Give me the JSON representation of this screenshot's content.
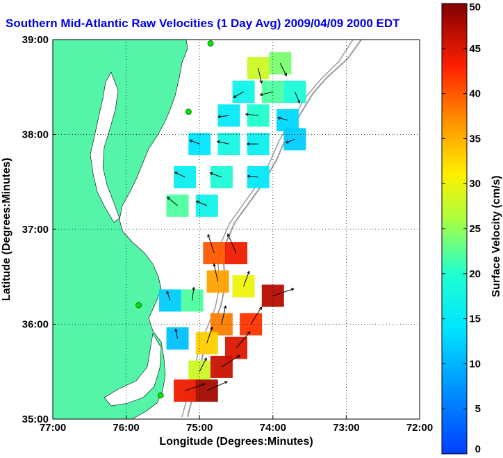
{
  "chart_data": {
    "type": "heatmap",
    "title": "Southern Mid-Atlantic Raw Velocities (1 Day Avg) 2009/04/09 2000 EDT",
    "xlabel": "Longitude (Degrees:Minutes)",
    "ylabel": "Latitude (Degrees:Minutes)",
    "xlim": [
      -77,
      -72
    ],
    "ylim": [
      35,
      39
    ],
    "x_ticks": [
      {
        "value": -77,
        "label": "77:00"
      },
      {
        "value": -76,
        "label": "76:00"
      },
      {
        "value": -75,
        "label": "75:00"
      },
      {
        "value": -74,
        "label": "74:00"
      },
      {
        "value": -73,
        "label": "73:00"
      },
      {
        "value": -72,
        "label": "72:00"
      }
    ],
    "y_ticks": [
      {
        "value": 35,
        "label": "35:00"
      },
      {
        "value": 36,
        "label": "36:00"
      },
      {
        "value": 37,
        "label": "37:00"
      },
      {
        "value": 38,
        "label": "38:00"
      },
      {
        "value": 39,
        "label": "39:00"
      }
    ],
    "grid": true,
    "colorbar": {
      "label": "Surface Velocity (cm/s)",
      "range": [
        0,
        50
      ],
      "ticks": [
        0,
        5,
        10,
        15,
        20,
        25,
        30,
        35,
        40,
        45,
        50
      ],
      "colormap": "jet"
    },
    "colors": {
      "land": "#54f5a8",
      "water": "#ffffff",
      "title": "#0000e6",
      "bathymetry": "#9a9a9a",
      "station": "#00e600"
    },
    "stations": [
      {
        "lon": -74.85,
        "lat": 38.96
      },
      {
        "lon": -75.15,
        "lat": 38.24
      },
      {
        "lon": -75.83,
        "lat": 36.2
      },
      {
        "lon": -75.53,
        "lat": 35.25
      }
    ],
    "regions": [
      {
        "name": "",
        "points": [
          {
            "lon": -74.2,
            "lat": 38.7,
            "speed": 28,
            "u": 0.2,
            "v": -0.9
          },
          {
            "lon": -73.9,
            "lat": 38.75,
            "speed": 24,
            "u": 0.4,
            "v": -0.8
          },
          {
            "lon": -74.4,
            "lat": 38.45,
            "speed": 17,
            "u": -0.7,
            "v": -0.4
          },
          {
            "lon": -74.0,
            "lat": 38.45,
            "speed": 22,
            "u": -0.8,
            "v": -0.2
          },
          {
            "lon": -73.7,
            "lat": 38.45,
            "speed": 19,
            "u": 0.3,
            "v": -0.7
          },
          {
            "lon": -74.6,
            "lat": 38.2,
            "speed": 15,
            "u": -0.8,
            "v": -0.1
          },
          {
            "lon": -74.2,
            "lat": 38.2,
            "speed": 20,
            "u": -0.9,
            "v": 0.1
          },
          {
            "lon": -73.8,
            "lat": 38.15,
            "speed": 13,
            "u": -0.7,
            "v": 0.2
          },
          {
            "lon": -75.0,
            "lat": 37.9,
            "speed": 14,
            "u": -0.8,
            "v": 0.3
          },
          {
            "lon": -74.6,
            "lat": 37.9,
            "speed": 18,
            "u": -0.9,
            "v": 0.2
          },
          {
            "lon": -74.2,
            "lat": 37.9,
            "speed": 16,
            "u": -0.8,
            "v": 0.0
          },
          {
            "lon": -73.7,
            "lat": 37.95,
            "speed": 12,
            "u": -0.5,
            "v": -0.2
          },
          {
            "lon": -75.2,
            "lat": 37.55,
            "speed": 16,
            "u": -0.8,
            "v": 0.4
          },
          {
            "lon": -74.7,
            "lat": 37.55,
            "speed": 19,
            "u": -0.8,
            "v": 0.3
          },
          {
            "lon": -74.2,
            "lat": 37.55,
            "speed": 15,
            "u": -0.9,
            "v": 0.1
          },
          {
            "lon": -75.3,
            "lat": 37.25,
            "speed": 22,
            "u": -0.6,
            "v": 0.5
          },
          {
            "lon": -74.9,
            "lat": 37.25,
            "speed": 17,
            "u": -0.7,
            "v": 0.3
          }
        ]
      },
      {
        "name": "",
        "points": [
          {
            "lon": -74.8,
            "lat": 36.75,
            "speed": 40,
            "u": -0.3,
            "v": 0.9
          },
          {
            "lon": -74.5,
            "lat": 36.75,
            "speed": 44,
            "u": -0.4,
            "v": 0.9
          },
          {
            "lon": -74.75,
            "lat": 36.45,
            "speed": 36,
            "u": -0.2,
            "v": 0.9
          },
          {
            "lon": -74.4,
            "lat": 36.4,
            "speed": 30,
            "u": 0.3,
            "v": 0.8
          },
          {
            "lon": -74.0,
            "lat": 36.3,
            "speed": 47,
            "u": 0.9,
            "v": 0.3
          },
          {
            "lon": -75.4,
            "lat": 36.25,
            "speed": 12,
            "u": -0.2,
            "v": 0.6
          },
          {
            "lon": -75.1,
            "lat": 36.25,
            "speed": 22,
            "u": 0.1,
            "v": 0.8
          },
          {
            "lon": -74.7,
            "lat": 36.0,
            "speed": 38,
            "u": 0.2,
            "v": 0.9
          },
          {
            "lon": -74.3,
            "lat": 36.0,
            "speed": 42,
            "u": 0.5,
            "v": 0.8
          },
          {
            "lon": -75.3,
            "lat": 35.85,
            "speed": 11,
            "u": -0.1,
            "v": 0.5
          },
          {
            "lon": -74.9,
            "lat": 35.8,
            "speed": 33,
            "u": 0.3,
            "v": 0.9
          },
          {
            "lon": -74.5,
            "lat": 35.75,
            "speed": 45,
            "u": 0.6,
            "v": 0.7
          },
          {
            "lon": -75.0,
            "lat": 35.5,
            "speed": 28,
            "u": 0.4,
            "v": 0.8
          },
          {
            "lon": -74.7,
            "lat": 35.55,
            "speed": 46,
            "u": 0.8,
            "v": 0.5
          },
          {
            "lon": -75.2,
            "lat": 35.3,
            "speed": 44,
            "u": 0.9,
            "v": 0.3
          },
          {
            "lon": -74.9,
            "lat": 35.3,
            "speed": 48,
            "u": 0.9,
            "v": 0.4
          }
        ]
      }
    ]
  }
}
